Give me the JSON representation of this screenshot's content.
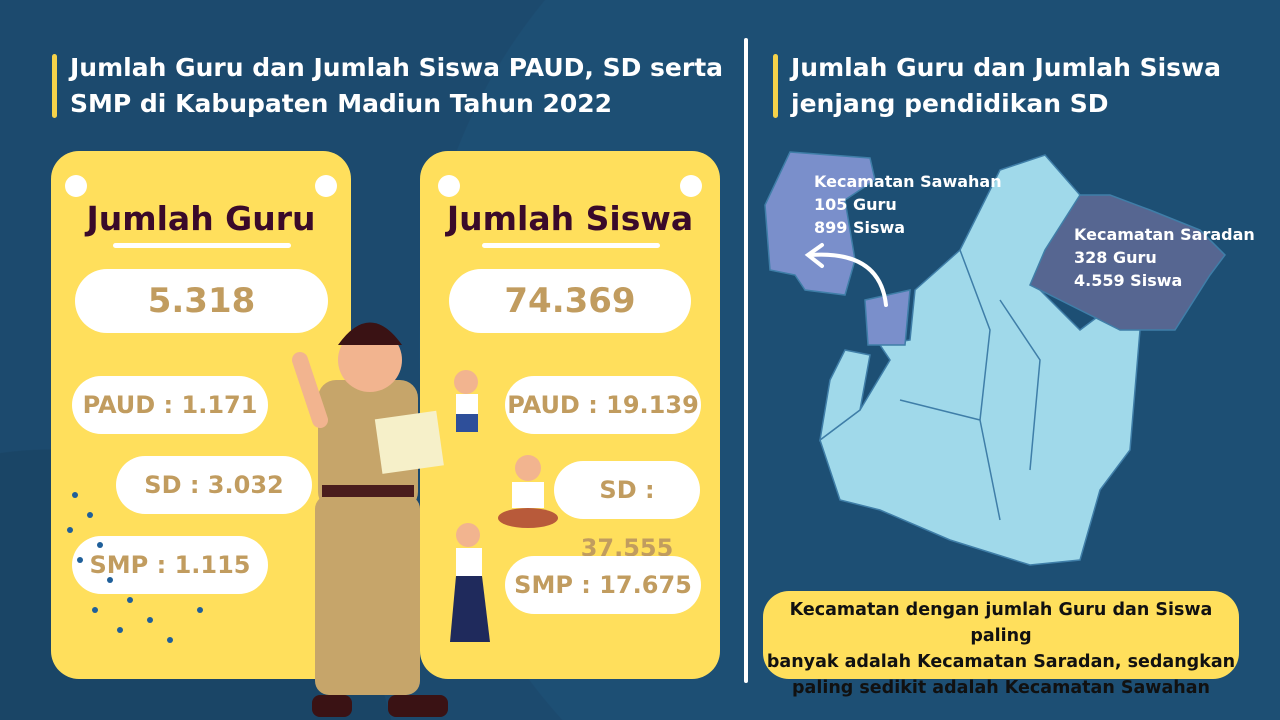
{
  "left": {
    "title_line1": "Jumlah Guru dan Jumlah Siswa PAUD, SD serta",
    "title_line2": "SMP di Kabupaten Madiun Tahun 2022"
  },
  "guru": {
    "heading": "Jumlah Guru",
    "total": "5.318",
    "paud": "PAUD : 1.171",
    "sd": "SD : 3.032",
    "smp": "SMP : 1.115"
  },
  "siswa": {
    "heading": "Jumlah Siswa",
    "total": "74.369",
    "paud": "PAUD : 19.139",
    "sd": "SD : 37.555",
    "smp": "SMP : 17.675"
  },
  "right": {
    "title_line1": "Jumlah Guru dan Jumlah Siswa",
    "title_line2": "jenjang pendidikan SD",
    "sawahan": {
      "name": "Kecamatan Sawahan",
      "guru": "105 Guru",
      "siswa": "899 Siswa"
    },
    "saradan": {
      "name": "Kecamatan Saradan",
      "guru": "328 Guru",
      "siswa": "4.559 Siswa"
    },
    "note_line1": "Kecamatan dengan jumlah Guru dan Siswa paling",
    "note_line2": "banyak adalah Kecamatan Saradan, sedangkan",
    "note_line3": "paling sedikit adalah Kecamatan Sawahan"
  },
  "colors": {
    "background": "#1c4a6e",
    "card": "#ffdf5c",
    "value": "#c19c5f",
    "map": "#a0d9ea",
    "sawahan": "#7a8fcb",
    "saradan": "#566691"
  }
}
